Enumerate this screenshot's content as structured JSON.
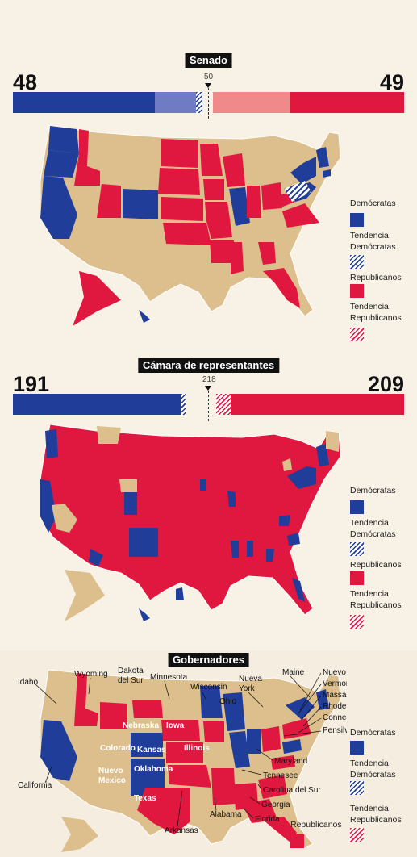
{
  "colors": {
    "dem": "#1f3d99",
    "dem_light": "#6f7cc4",
    "rep": "#e0173f",
    "rep_light": "#f08a8a",
    "neutral": "#dcbf8c",
    "background": "#f8f1e6"
  },
  "senate": {
    "title": "Senado",
    "dem_total": "48",
    "rep_total": "49",
    "majority": "50"
  },
  "house": {
    "title": "Cámara de representantes",
    "dem_total": "191",
    "rep_total": "209",
    "majority": "218"
  },
  "governors": {
    "title": "Gobernadores",
    "state_labels": [
      "Idaho",
      "Wyoming",
      "Dakota",
      "del Sur",
      "Minnesota",
      "Wisconsin",
      "Ohio",
      "Nueva",
      "York",
      "Maine",
      "Nuevo Hampshire",
      "Vermont",
      "Massachusetts",
      "Rhode Island",
      "Connecticut",
      "Pensilvania",
      "Nebraska",
      "Iowa",
      "Colorado",
      "Kansas",
      "Illinois",
      "Nuevo",
      "Mexico",
      "Oklahoma",
      "Texas",
      "California",
      "Maryland",
      "Tennesee",
      "Carolina del Sur",
      "Georgia",
      "Florida",
      "Alabama",
      "Arkansas"
    ]
  },
  "legend": {
    "dem": "Demócratas",
    "lean_dem_1": "Tendencia",
    "lean_dem_2": "Demócratas",
    "rep": "Republicanos",
    "lean_rep_1": "Tendencia",
    "lean_rep_2": "Republicanos"
  }
}
